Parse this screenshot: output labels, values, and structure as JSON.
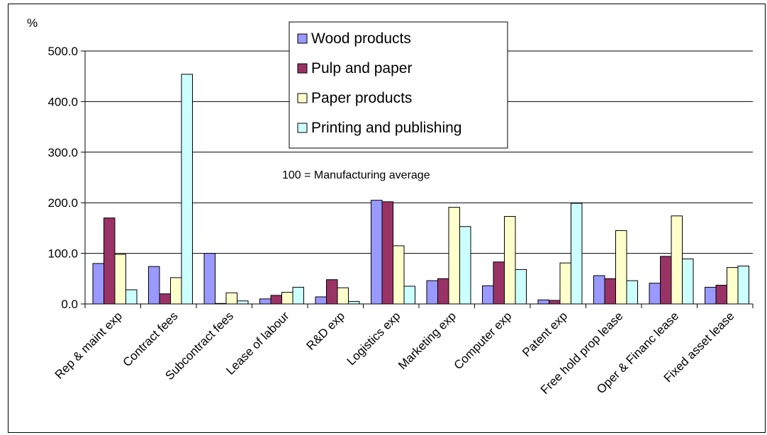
{
  "chart_data": {
    "type": "bar",
    "title": "",
    "xlabel": "",
    "ylabel": "%",
    "ylim": [
      0,
      500
    ],
    "yticks": [
      0,
      100,
      200,
      300,
      400,
      500
    ],
    "ytick_labels": [
      "0.0",
      "100.0",
      "200.0",
      "300.0",
      "400.0",
      "500.0"
    ],
    "grid": true,
    "legend_position": "top-center",
    "annotation": "100 = Manufacturing average",
    "categories": [
      "Rep & maint exp",
      "Contract fees",
      "Subcontract fees",
      "Lease of labour",
      "R&D exp",
      "Logistics exp",
      "Marketing exp",
      "Computer exp",
      "Patent exp",
      "Free hold prop lease",
      "Oper & Financ lease",
      "Fixed asset lease"
    ],
    "series": [
      {
        "name": "Wood products",
        "color": "#9999ff",
        "values": [
          80,
          74,
          100,
          10,
          14,
          205,
          46,
          36,
          8,
          56,
          41,
          33
        ]
      },
      {
        "name": "Pulp and paper",
        "color": "#993366",
        "values": [
          170,
          20,
          1,
          17,
          48,
          202,
          50,
          83,
          7,
          50,
          94,
          37
        ]
      },
      {
        "name": "Paper products",
        "color": "#ffffcc",
        "values": [
          98,
          52,
          22,
          23,
          32,
          115,
          191,
          173,
          81,
          145,
          174,
          72
        ]
      },
      {
        "name": "Printing and publishing",
        "color": "#ccffff",
        "values": [
          28,
          454,
          6,
          33,
          5,
          35,
          153,
          68,
          199,
          46,
          89,
          75
        ]
      }
    ]
  }
}
